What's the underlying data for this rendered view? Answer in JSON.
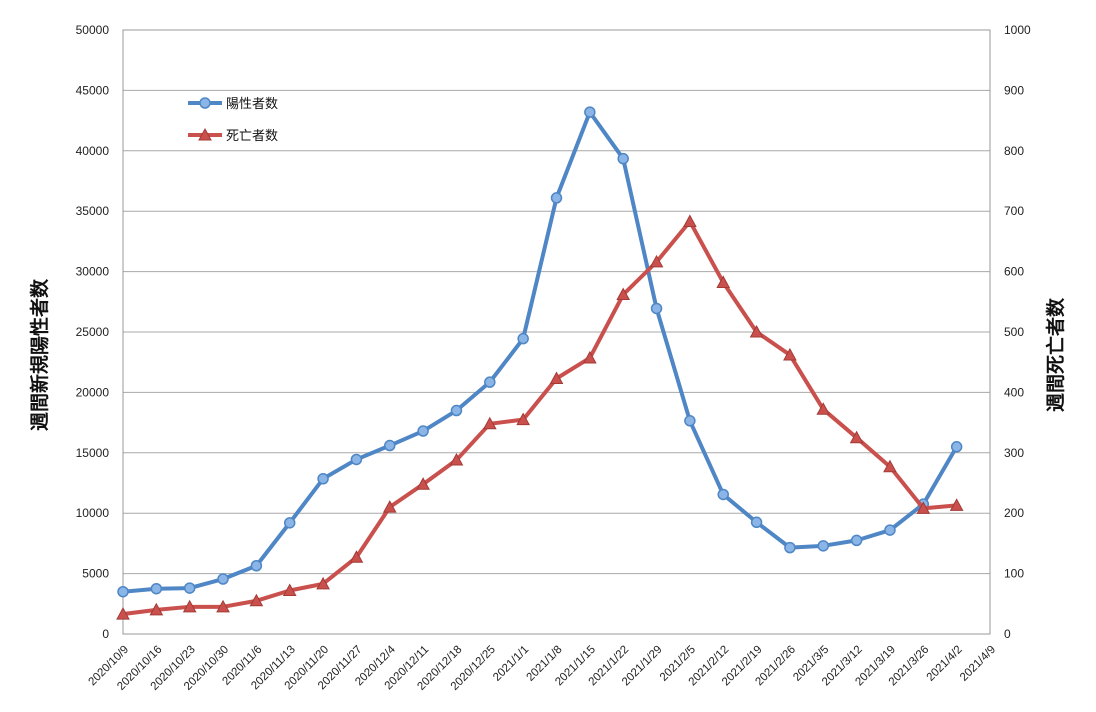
{
  "chart_data": {
    "type": "line",
    "categories": [
      "2020/10/9",
      "2020/10/16",
      "2020/10/23",
      "2020/10/30",
      "2020/11/6",
      "2020/11/13",
      "2020/11/20",
      "2020/11/27",
      "2020/12/4",
      "2020/12/11",
      "2020/12/18",
      "2020/12/25",
      "2021/1/1",
      "2021/1/8",
      "2021/1/15",
      "2021/1/22",
      "2021/1/29",
      "2021/2/5",
      "2021/2/12",
      "2021/2/19",
      "2021/2/26",
      "2021/3/5",
      "2021/3/12",
      "2021/3/19",
      "2021/3/26",
      "2021/4/2",
      "2021/4/9"
    ],
    "ylabel": "週間新規陽性者数",
    "y2label": "週間死亡者数",
    "ylim": [
      0,
      50000
    ],
    "y2lim": [
      0,
      1000
    ],
    "yticks": [
      "0",
      "5000",
      "10000",
      "15000",
      "20000",
      "25000",
      "30000",
      "35000",
      "40000",
      "45000",
      "50000"
    ],
    "y2ticks": [
      "0",
      "100",
      "200",
      "300",
      "400",
      "500",
      "600",
      "700",
      "800",
      "900",
      "1000"
    ],
    "grid": true,
    "legend_position": "top-left",
    "series": [
      {
        "name": "陽性者数",
        "axis": "left",
        "color": "#4f86c6",
        "marker": "circle",
        "values": [
          3500,
          3750,
          3800,
          4550,
          5650,
          9200,
          12850,
          14450,
          15600,
          16800,
          18500,
          20850,
          24450,
          36100,
          43200,
          39350,
          26950,
          17650,
          11550,
          9250,
          7150,
          7300,
          7750,
          8600,
          10750,
          15500,
          null
        ]
      },
      {
        "name": "死亡者数",
        "axis": "right",
        "color": "#c9504c",
        "marker": "triangle",
        "values": [
          33,
          40,
          45,
          45,
          55,
          72,
          83,
          127,
          210,
          248,
          288,
          348,
          355,
          423,
          457,
          562,
          616,
          683,
          582,
          500,
          462,
          372,
          325,
          277,
          208,
          213,
          null
        ]
      }
    ]
  }
}
